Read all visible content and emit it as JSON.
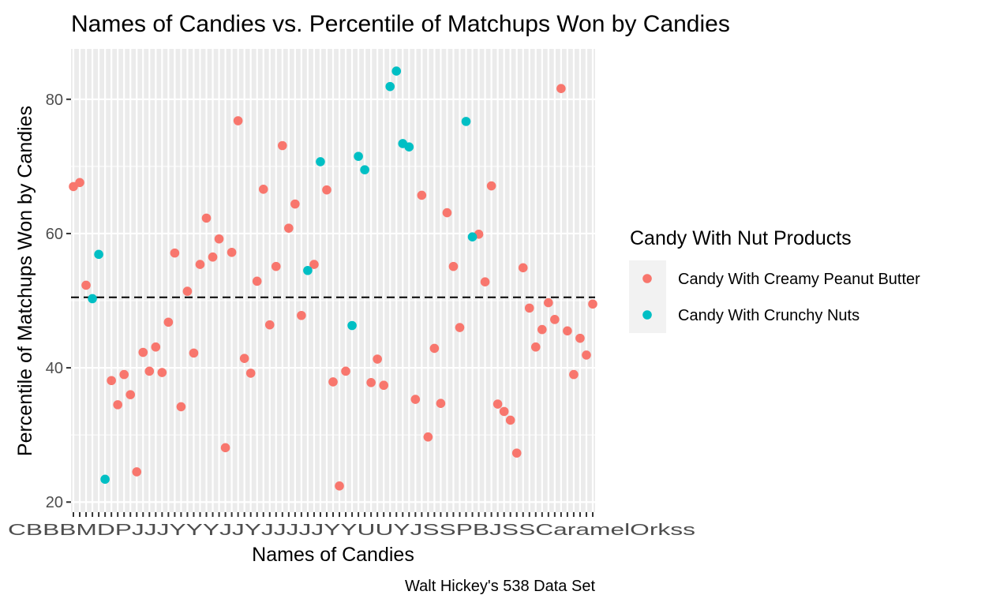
{
  "chart_data": {
    "type": "scatter",
    "title": "Names of Candies vs. Percentile of Matchups Won by Candies",
    "xlabel": "Names of Candies",
    "ylabel": "Percentile of Matchups Won by Candies",
    "caption": "Walt Hickey's 538 Data Set",
    "ylim": [
      18.5,
      87.5
    ],
    "yticks": [
      20,
      40,
      60,
      80
    ],
    "grid": true,
    "hline": {
      "y": 50.5,
      "style": "dashed"
    },
    "x_tick_text": "CBBBMDPJJJYYYJJYJJJJJYYUUYJSSPBJSSCaramelOrkss",
    "legend": {
      "title": "Candy With Nut Products",
      "position": "right",
      "entries": [
        {
          "name": "Candy With Creamy Peanut Butter",
          "color": "#F8766D"
        },
        {
          "name": "Candy With Crunchy Nuts",
          "color": "#00BFC4"
        }
      ]
    },
    "series": [
      {
        "name": "Candy With Creamy Peanut Butter",
        "color": "#F8766D",
        "points": [
          [
            1,
            67.0
          ],
          [
            2,
            67.6
          ],
          [
            3,
            52.3
          ],
          [
            7,
            38.1
          ],
          [
            8,
            34.5
          ],
          [
            9,
            39.0
          ],
          [
            10,
            36.0
          ],
          [
            11,
            24.5
          ],
          [
            12,
            42.3
          ],
          [
            13,
            39.5
          ],
          [
            14,
            43.1
          ],
          [
            15,
            39.3
          ],
          [
            16,
            46.8
          ],
          [
            17,
            57.1
          ],
          [
            18,
            34.2
          ],
          [
            19,
            51.4
          ],
          [
            20,
            42.2
          ],
          [
            21,
            55.4
          ],
          [
            22,
            62.3
          ],
          [
            23,
            56.5
          ],
          [
            24,
            59.2
          ],
          [
            25,
            28.1
          ],
          [
            26,
            57.2
          ],
          [
            27,
            76.8
          ],
          [
            28,
            41.4
          ],
          [
            29,
            39.2
          ],
          [
            30,
            52.9
          ],
          [
            31,
            66.6
          ],
          [
            32,
            46.4
          ],
          [
            33,
            55.1
          ],
          [
            34,
            73.1
          ],
          [
            35,
            60.8
          ],
          [
            36,
            64.4
          ],
          [
            37,
            47.8
          ],
          [
            39,
            55.4
          ],
          [
            41,
            66.5
          ],
          [
            42,
            37.9
          ],
          [
            43,
            22.4
          ],
          [
            44,
            39.5
          ],
          [
            48,
            37.8
          ],
          [
            49,
            41.3
          ],
          [
            50,
            37.4
          ],
          [
            55,
            35.3
          ],
          [
            56,
            65.7
          ],
          [
            57,
            29.7
          ],
          [
            58,
            42.9
          ],
          [
            59,
            34.7
          ],
          [
            60,
            63.1
          ],
          [
            61,
            55.1
          ],
          [
            62,
            46.0
          ],
          [
            65,
            59.9
          ],
          [
            66,
            52.8
          ],
          [
            67,
            67.1
          ],
          [
            68,
            34.6
          ],
          [
            69,
            33.5
          ],
          [
            70,
            32.2
          ],
          [
            71,
            27.3
          ],
          [
            72,
            54.9
          ],
          [
            73,
            48.9
          ],
          [
            74,
            43.1
          ],
          [
            75,
            45.7
          ],
          [
            76,
            49.7
          ],
          [
            77,
            47.2
          ],
          [
            78,
            81.6
          ],
          [
            79,
            45.5
          ],
          [
            80,
            39.0
          ],
          [
            81,
            44.4
          ],
          [
            82,
            41.9
          ],
          [
            83,
            49.5
          ]
        ]
      },
      {
        "name": "Candy With Crunchy Nuts",
        "color": "#00BFC4",
        "points": [
          [
            4,
            50.3
          ],
          [
            5,
            56.9
          ],
          [
            6,
            23.4
          ],
          [
            38,
            54.5
          ],
          [
            40,
            70.7
          ],
          [
            45,
            46.3
          ],
          [
            46,
            71.5
          ],
          [
            47,
            69.5
          ],
          [
            51,
            81.9
          ],
          [
            52,
            84.2
          ],
          [
            53,
            73.4
          ],
          [
            54,
            72.9
          ],
          [
            63,
            76.7
          ],
          [
            64,
            59.5
          ]
        ]
      }
    ]
  }
}
